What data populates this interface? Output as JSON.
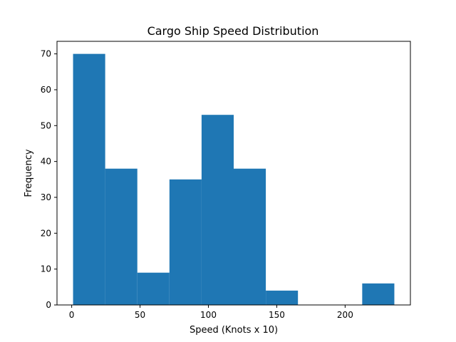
{
  "chart_data": {
    "type": "bar",
    "title": "Cargo Ship Speed Distribution",
    "xlabel": "Speed (Knots x 10)",
    "ylabel": "Frequency",
    "bin_edges": [
      1,
      24.5,
      48,
      71.5,
      95,
      118.5,
      142,
      165.5,
      189,
      212.5,
      236
    ],
    "values": [
      70,
      38,
      9,
      35,
      53,
      38,
      4,
      0,
      0,
      6
    ],
    "xlim": [
      -10.75,
      247.75
    ],
    "ylim": [
      0,
      73.5
    ],
    "xticks": [
      0,
      50,
      100,
      150,
      200
    ],
    "yticks": [
      0,
      10,
      20,
      30,
      40,
      50,
      60,
      70
    ],
    "bar_color": "#1f77b4",
    "grid": false,
    "legend": false
  }
}
